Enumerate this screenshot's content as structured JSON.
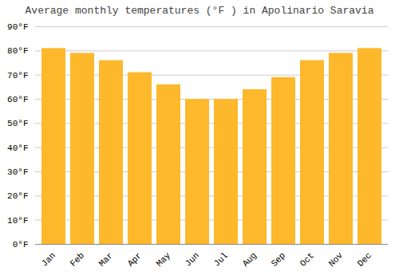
{
  "chart_data": {
    "type": "bar",
    "title": "Average monthly temperatures (°F ) in Apolinario Saravia",
    "categories": [
      "Jan",
      "Feb",
      "Mar",
      "Apr",
      "May",
      "Jun",
      "Jul",
      "Aug",
      "Sep",
      "Oct",
      "Nov",
      "Dec"
    ],
    "values": [
      81,
      79,
      76,
      71,
      66,
      60,
      60,
      64,
      69,
      76,
      79,
      81
    ],
    "color": "#FDB82B",
    "ylim": [
      0,
      90
    ],
    "yticks": [
      {
        "value": 0,
        "label": "0°F"
      },
      {
        "value": 10,
        "label": "10°F"
      },
      {
        "value": 20,
        "label": "20°F"
      },
      {
        "value": 30,
        "label": "30°F"
      },
      {
        "value": 40,
        "label": "40°F"
      },
      {
        "value": 50,
        "label": "50°F"
      },
      {
        "value": 60,
        "label": "60°F"
      },
      {
        "value": 70,
        "label": "70°F"
      },
      {
        "value": 80,
        "label": "80°F"
      },
      {
        "value": 90,
        "label": "90°F"
      }
    ],
    "grid": true
  }
}
